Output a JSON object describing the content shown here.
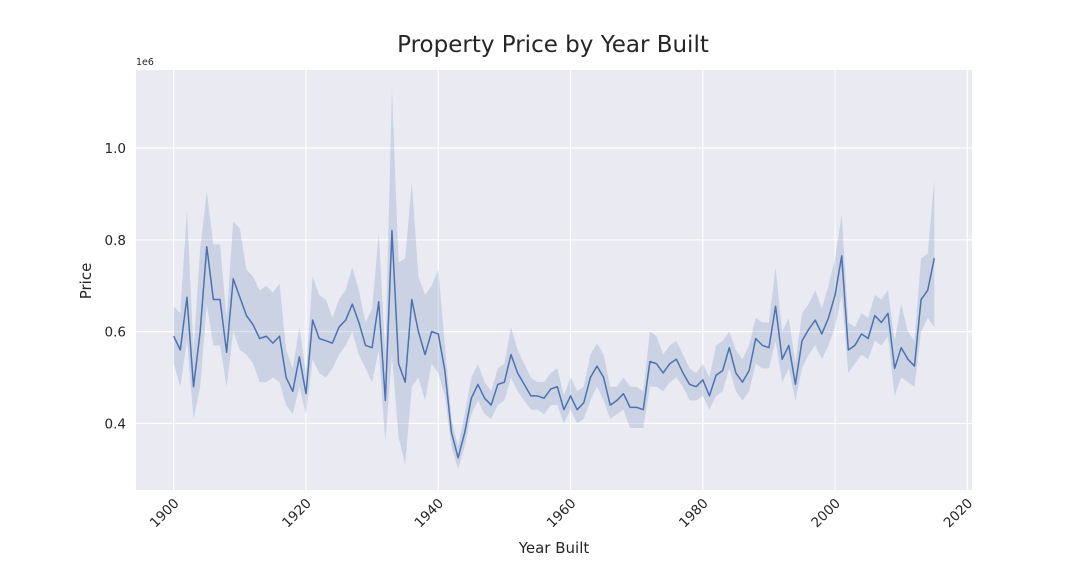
{
  "chart_data": {
    "type": "line",
    "title": "Property Price by Year Built",
    "xlabel": "Year Built",
    "ylabel": "Price",
    "y_offset_label": "1e6",
    "xlim": [
      1894.3,
      2020.7
    ],
    "ylim": [
      0.255,
      1.17
    ],
    "x_ticks": [
      1900,
      1920,
      1940,
      1960,
      1980,
      2000,
      2020
    ],
    "x_tick_labels": [
      "1900",
      "1920",
      "1940",
      "1960",
      "1980",
      "2000",
      "2020"
    ],
    "y_ticks": [
      0.4,
      0.6,
      0.8,
      1.0
    ],
    "y_tick_labels": [
      "0.4",
      "0.6",
      "0.8",
      "1.0"
    ],
    "grid": true,
    "legend": "none",
    "colors": {
      "line": "#4c72b0",
      "band": "#4c72b0",
      "background": "#eaeaf2",
      "grid": "#ffffff"
    },
    "series": [
      {
        "x": [
          1900,
          1901,
          1902,
          1903,
          1904,
          1905,
          1906,
          1907,
          1908,
          1909,
          1910,
          1911,
          1912,
          1913,
          1914,
          1915,
          1916,
          1917,
          1918,
          1919,
          1920,
          1921,
          1922,
          1923,
          1924,
          1925,
          1926,
          1927,
          1928,
          1929,
          1930,
          1931,
          1932,
          1933,
          1934,
          1935,
          1936,
          1937,
          1938,
          1939,
          1940,
          1941,
          1942,
          1943,
          1944,
          1945,
          1946,
          1947,
          1948,
          1949,
          1950,
          1951,
          1952,
          1953,
          1954,
          1955,
          1956,
          1957,
          1958,
          1959,
          1960,
          1961,
          1962,
          1963,
          1964,
          1965,
          1966,
          1967,
          1968,
          1969,
          1970,
          1971,
          1972,
          1973,
          1974,
          1975,
          1976,
          1977,
          1978,
          1979,
          1980,
          1981,
          1982,
          1983,
          1984,
          1985,
          1986,
          1987,
          1988,
          1989,
          1990,
          1991,
          1992,
          1993,
          1994,
          1995,
          1996,
          1997,
          1998,
          1999,
          2000,
          2001,
          2002,
          2003,
          2004,
          2005,
          2006,
          2007,
          2008,
          2009,
          2010,
          2011,
          2012,
          2013,
          2014,
          2015
        ],
        "values": [
          0.59,
          0.56,
          0.675,
          0.48,
          0.6,
          0.785,
          0.67,
          0.67,
          0.555,
          0.715,
          0.675,
          0.635,
          0.615,
          0.585,
          0.59,
          0.575,
          0.59,
          0.5,
          0.47,
          0.545,
          0.465,
          0.625,
          0.585,
          0.58,
          0.575,
          0.61,
          0.625,
          0.66,
          0.62,
          0.57,
          0.565,
          0.665,
          0.45,
          0.82,
          0.53,
          0.49,
          0.67,
          0.6,
          0.55,
          0.6,
          0.595,
          0.515,
          0.38,
          0.325,
          0.38,
          0.455,
          0.485,
          0.455,
          0.44,
          0.485,
          0.49,
          0.55,
          0.51,
          0.485,
          0.46,
          0.46,
          0.455,
          0.475,
          0.48,
          0.43,
          0.46,
          0.43,
          0.445,
          0.5,
          0.525,
          0.5,
          0.44,
          0.45,
          0.465,
          0.435,
          0.435,
          0.43,
          0.535,
          0.53,
          0.51,
          0.53,
          0.54,
          0.51,
          0.485,
          0.48,
          0.495,
          0.46,
          0.505,
          0.515,
          0.565,
          0.51,
          0.49,
          0.515,
          0.585,
          0.57,
          0.565,
          0.655,
          0.54,
          0.57,
          0.485,
          0.58,
          0.605,
          0.625,
          0.595,
          0.63,
          0.68,
          0.765,
          0.56,
          0.57,
          0.595,
          0.585,
          0.635,
          0.62,
          0.64,
          0.52,
          0.565,
          0.54,
          0.525,
          0.67,
          0.69,
          0.76
        ],
        "lower": [
          0.53,
          0.48,
          0.58,
          0.41,
          0.48,
          0.66,
          0.57,
          0.57,
          0.48,
          0.6,
          0.56,
          0.55,
          0.53,
          0.49,
          0.49,
          0.5,
          0.49,
          0.44,
          0.42,
          0.48,
          0.42,
          0.54,
          0.51,
          0.5,
          0.52,
          0.55,
          0.57,
          0.6,
          0.55,
          0.52,
          0.49,
          0.56,
          0.36,
          0.55,
          0.37,
          0.31,
          0.48,
          0.5,
          0.45,
          0.53,
          0.51,
          0.46,
          0.35,
          0.3,
          0.35,
          0.42,
          0.45,
          0.42,
          0.41,
          0.44,
          0.45,
          0.5,
          0.47,
          0.45,
          0.43,
          0.43,
          0.42,
          0.44,
          0.44,
          0.4,
          0.43,
          0.4,
          0.41,
          0.45,
          0.48,
          0.45,
          0.41,
          0.42,
          0.43,
          0.39,
          0.39,
          0.39,
          0.48,
          0.48,
          0.47,
          0.49,
          0.5,
          0.48,
          0.45,
          0.45,
          0.46,
          0.43,
          0.46,
          0.47,
          0.52,
          0.47,
          0.45,
          0.47,
          0.53,
          0.52,
          0.52,
          0.58,
          0.49,
          0.52,
          0.45,
          0.52,
          0.55,
          0.57,
          0.54,
          0.57,
          0.61,
          0.68,
          0.51,
          0.53,
          0.55,
          0.54,
          0.58,
          0.57,
          0.59,
          0.46,
          0.5,
          0.49,
          0.48,
          0.6,
          0.63,
          0.61
        ],
        "upper": [
          0.655,
          0.64,
          0.865,
          0.56,
          0.78,
          0.905,
          0.79,
          0.79,
          0.63,
          0.84,
          0.825,
          0.735,
          0.72,
          0.69,
          0.7,
          0.685,
          0.705,
          0.56,
          0.52,
          0.61,
          0.51,
          0.72,
          0.68,
          0.67,
          0.63,
          0.67,
          0.69,
          0.74,
          0.69,
          0.62,
          0.65,
          0.815,
          0.55,
          1.13,
          0.75,
          0.76,
          0.925,
          0.72,
          0.68,
          0.7,
          0.735,
          0.57,
          0.41,
          0.35,
          0.42,
          0.5,
          0.53,
          0.49,
          0.47,
          0.52,
          0.53,
          0.61,
          0.56,
          0.53,
          0.5,
          0.49,
          0.49,
          0.51,
          0.52,
          0.46,
          0.5,
          0.47,
          0.48,
          0.55,
          0.575,
          0.55,
          0.48,
          0.48,
          0.5,
          0.48,
          0.48,
          0.47,
          0.6,
          0.59,
          0.55,
          0.57,
          0.58,
          0.55,
          0.52,
          0.51,
          0.53,
          0.5,
          0.57,
          0.58,
          0.6,
          0.56,
          0.54,
          0.57,
          0.63,
          0.62,
          0.62,
          0.74,
          0.6,
          0.63,
          0.53,
          0.64,
          0.66,
          0.69,
          0.65,
          0.7,
          0.76,
          0.855,
          0.62,
          0.61,
          0.64,
          0.63,
          0.68,
          0.67,
          0.69,
          0.58,
          0.66,
          0.6,
          0.58,
          0.76,
          0.77,
          0.93
        ]
      }
    ]
  }
}
